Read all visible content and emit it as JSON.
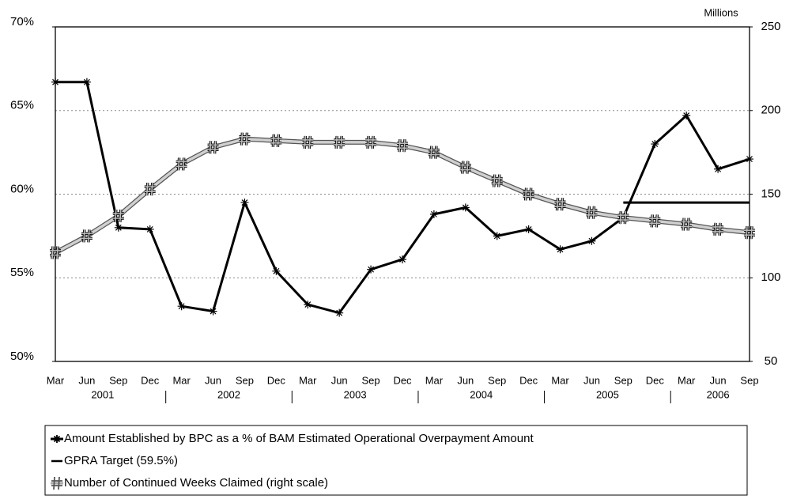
{
  "chart_data": {
    "type": "line",
    "y2_label": "Millions",
    "categories": [
      "Mar",
      "Jun",
      "Sep",
      "Dec",
      "Mar",
      "Jun",
      "Sep",
      "Dec",
      "Mar",
      "Jun",
      "Sep",
      "Dec",
      "Mar",
      "Jun",
      "Sep",
      "Dec",
      "Mar",
      "Jun",
      "Sep",
      "Dec",
      "Mar",
      "Jun",
      "Sep"
    ],
    "years": [
      "2001",
      "2002",
      "2003",
      "2004",
      "2005",
      "2006"
    ],
    "series": [
      {
        "name": "Amount Established by BPC as a % of BAM Estimated Operational Overpayment Amount",
        "color": "#000000",
        "marker": "star",
        "values": [
          66.7,
          66.7,
          58.0,
          57.9,
          53.3,
          53.0,
          59.5,
          55.4,
          53.4,
          52.9,
          55.5,
          56.1,
          58.8,
          59.2,
          57.5,
          57.9,
          56.7,
          57.2,
          58.6,
          63.0,
          64.7,
          61.5,
          62.1
        ]
      },
      {
        "name": "GPRA Target (59.5%)",
        "color": "#000000",
        "marker": "none",
        "values": [
          null,
          null,
          null,
          null,
          null,
          null,
          null,
          null,
          null,
          null,
          null,
          null,
          null,
          null,
          null,
          null,
          null,
          null,
          59.5,
          59.5,
          59.5,
          59.5,
          59.5
        ]
      },
      {
        "name": "Number of Continued Weeks Claimed (right scale)",
        "color": "#9a9a9a",
        "marker": "hash",
        "axis": "y2",
        "values": [
          115,
          125,
          137,
          153,
          168,
          178,
          183,
          182,
          181,
          181,
          181,
          179,
          175,
          166,
          158,
          150,
          144,
          139,
          136,
          134,
          132,
          129,
          127
        ]
      }
    ],
    "ylim": [
      50,
      70
    ],
    "yticks": [
      {
        "value": 50,
        "label": "50%"
      },
      {
        "value": 55,
        "label": "55%"
      },
      {
        "value": 60,
        "label": "60%"
      },
      {
        "value": 65,
        "label": "65%"
      },
      {
        "value": 70,
        "label": "70%"
      }
    ],
    "y2lim": [
      50,
      250
    ],
    "y2ticks": [
      50,
      100,
      150,
      200,
      250
    ],
    "grid": true,
    "legend": "bottom"
  }
}
